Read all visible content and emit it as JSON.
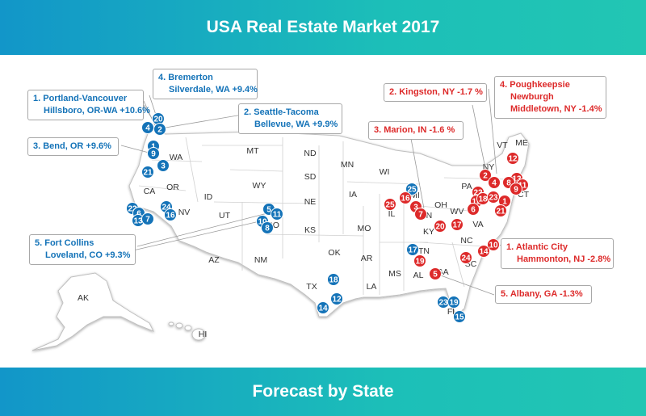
{
  "title": "USA Real Estate Market 2017",
  "footer": "Forecast by State",
  "colors": {
    "increase": "#1473b8",
    "decrease": "#dd2a2a",
    "banner_start": "#1296c9",
    "banner_end": "#22c6b3"
  },
  "states": [
    "WA",
    "OR",
    "ID",
    "MT",
    "ND",
    "SD",
    "WY",
    "NE",
    "UT",
    "CO",
    "KS",
    "AZ",
    "NM",
    "OK",
    "TX",
    "MN",
    "IA",
    "MO",
    "AR",
    "LA",
    "WI",
    "IL",
    "MI",
    "IN",
    "OH",
    "KY",
    "TN",
    "MS",
    "AL",
    "GA",
    "FL",
    "SC",
    "NC",
    "VA",
    "WV",
    "PA",
    "NY",
    "VT",
    "ME",
    "CT",
    "CA",
    "NV",
    "AK",
    "HI"
  ],
  "callouts": {
    "b1": {
      "line1": "1.  Portland-Vancouver",
      "line2": "Hillsboro, OR-WA +10.6%"
    },
    "b2": {
      "line1": "2.  Seattle-Tacoma",
      "line2": "Bellevue, WA +9.9%"
    },
    "b3": {
      "line1": "3.  Bend, OR +9.6%"
    },
    "b4": {
      "line1": "4.  Bremerton",
      "line2": "Silverdale, WA +9.4%"
    },
    "b5": {
      "line1": "5.  Fort Collins",
      "line2": "Loveland, CO +9.3%"
    },
    "r1": {
      "line1": "1.  Atlantic City",
      "line2": "Hammonton, NJ -2.8%"
    },
    "r2": {
      "line1": "2.  Kingston, NY -1.7 %"
    },
    "r3": {
      "line1": "3.  Marion, IN -1.6 %"
    },
    "r4": {
      "line1": "4.  Poughkeepsie",
      "line2": "Newburgh",
      "line3": "Middletown, NY -1.4%"
    },
    "r5": {
      "line1": "5.  Albany, GA -1.3%"
    }
  },
  "markers": {
    "blue": [
      "20",
      "4",
      "2",
      "1",
      "9",
      "3",
      "21",
      "24",
      "16",
      "22",
      "6",
      "13",
      "7",
      "5",
      "11",
      "10",
      "8",
      "18",
      "12",
      "14",
      "17",
      "25",
      "23",
      "19",
      "15"
    ],
    "red": [
      "12",
      "2",
      "4",
      "13",
      "8",
      "11",
      "9",
      "22",
      "15",
      "18",
      "23",
      "6",
      "1",
      "21",
      "25",
      "16",
      "3",
      "7",
      "20",
      "17",
      "10",
      "14",
      "24",
      "19",
      "5"
    ]
  }
}
